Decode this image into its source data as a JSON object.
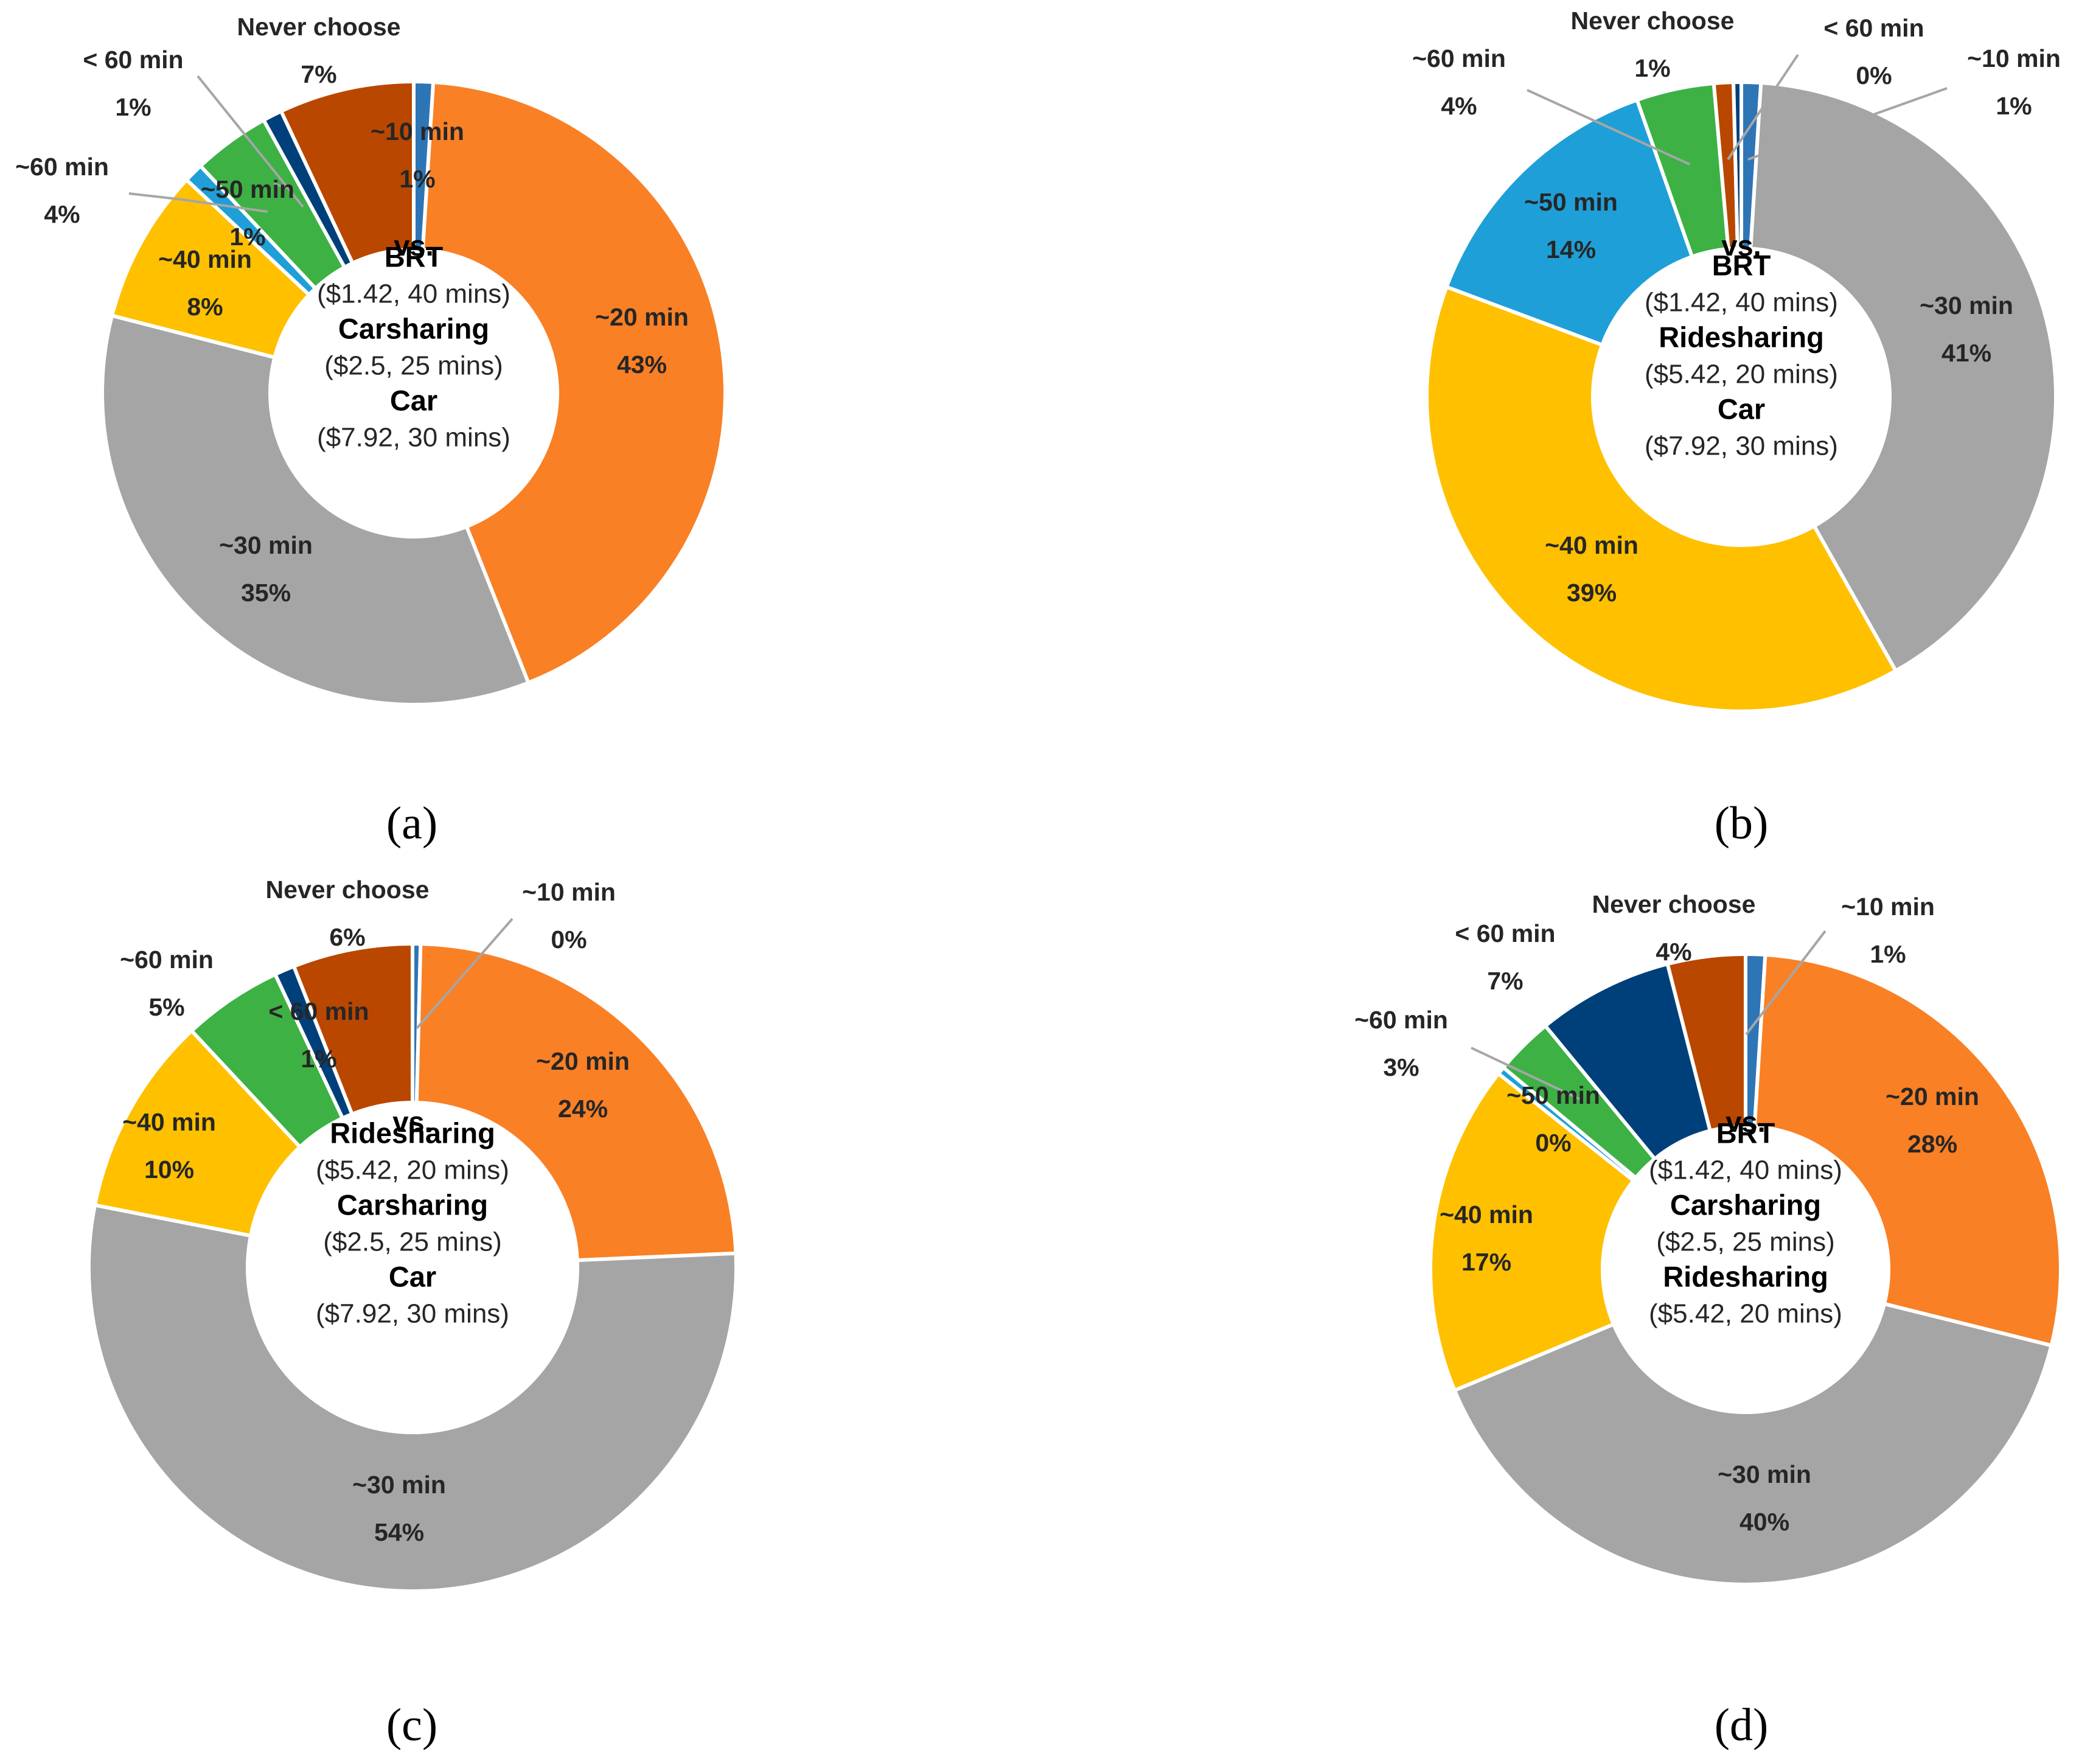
{
  "figure": {
    "categories": [
      "~10 min",
      "~20 min",
      "~30 min",
      "~40 min",
      "~50 min",
      "~60 min",
      "< 60 min",
      "Never choose"
    ],
    "colors": {
      "~10 min": "#2e75b6",
      "~20 min": "#f98025",
      "~30 min": "#a5a5a5",
      "~40 min": "#ffc000",
      "~50 min": "#1f9fd7",
      "~60 min": "#3db144",
      "< 60 min": "#00407a",
      "Never choose": "#b94700"
    },
    "center_lead": "vs."
  },
  "chart_data": [
    {
      "type": "pie",
      "panel": "(a)",
      "title": "",
      "hole": "donut",
      "center_lines": [
        {
          "text": "BRT",
          "style": "bold"
        },
        {
          "text": "($1.42, 40 mins)",
          "style": "normal"
        },
        {
          "text": "Carsharing",
          "style": "bold"
        },
        {
          "text": "($2.5, 25 mins)",
          "style": "normal"
        },
        {
          "text": "Car",
          "style": "bold"
        },
        {
          "text": "($7.92, 30 mins)",
          "style": "normal"
        }
      ],
      "slices": [
        {
          "label": "~10 min",
          "value": 1,
          "pct": "1%"
        },
        {
          "label": "~20 min",
          "value": 43,
          "pct": "43%"
        },
        {
          "label": "~30 min",
          "value": 35,
          "pct": "35%"
        },
        {
          "label": "~40 min",
          "value": 8,
          "pct": "8%"
        },
        {
          "label": "~50 min",
          "value": 1,
          "pct": "1%"
        },
        {
          "label": "~60 min",
          "value": 4,
          "pct": "4%"
        },
        {
          "label": "< 60 min",
          "value": 1,
          "pct": "1%"
        },
        {
          "label": "Never choose",
          "value": 7,
          "pct": "7%"
        }
      ]
    },
    {
      "type": "pie",
      "panel": "(b)",
      "title": "",
      "hole": "donut",
      "center_lines": [
        {
          "text": "BRT",
          "style": "bold"
        },
        {
          "text": "($1.42, 40 mins)",
          "style": "normal"
        },
        {
          "text": "Ridesharing",
          "style": "bold"
        },
        {
          "text": "($5.42, 20 mins)",
          "style": "normal"
        },
        {
          "text": "Car",
          "style": "bold"
        },
        {
          "text": "($7.92, 30 mins)",
          "style": "normal"
        }
      ],
      "slices": [
        {
          "label": "~10 min",
          "value": 1,
          "pct": "1%"
        },
        {
          "label": "~30 min",
          "value": 41,
          "pct": "41%"
        },
        {
          "label": "~40 min",
          "value": 39,
          "pct": "39%"
        },
        {
          "label": "~50 min",
          "value": 14,
          "pct": "14%"
        },
        {
          "label": "~60 min",
          "value": 4,
          "pct": "4%"
        },
        {
          "label": "Never choose",
          "value": 1,
          "pct": "1%"
        },
        {
          "label": "< 60 min",
          "value": 0.4,
          "pct": "0%"
        }
      ]
    },
    {
      "type": "pie",
      "panel": "(c)",
      "title": "",
      "hole": "donut",
      "center_lines": [
        {
          "text": "Ridesharing",
          "style": "bold"
        },
        {
          "text": "($5.42, 20 mins)",
          "style": "normal"
        },
        {
          "text": "Carsharing",
          "style": "bold"
        },
        {
          "text": "($2.5, 25 mins)",
          "style": "normal"
        },
        {
          "text": "Car",
          "style": "bold"
        },
        {
          "text": "($7.92, 30 mins)",
          "style": "normal"
        }
      ],
      "slices": [
        {
          "label": "~10 min",
          "value": 0.4,
          "pct": "0%"
        },
        {
          "label": "~20 min",
          "value": 24,
          "pct": "24%"
        },
        {
          "label": "~30 min",
          "value": 54,
          "pct": "54%"
        },
        {
          "label": "~40 min",
          "value": 10,
          "pct": "10%"
        },
        {
          "label": "~60 min",
          "value": 5,
          "pct": "5%"
        },
        {
          "label": "< 60 min",
          "value": 1,
          "pct": "1%"
        },
        {
          "label": "Never choose",
          "value": 6,
          "pct": "6%"
        }
      ]
    },
    {
      "type": "pie",
      "panel": "(d)",
      "title": "",
      "hole": "donut",
      "center_lines": [
        {
          "text": "BRT",
          "style": "bold"
        },
        {
          "text": "($1.42, 40 mins)",
          "style": "normal"
        },
        {
          "text": "Carsharing",
          "style": "bold"
        },
        {
          "text": "($2.5, 25 mins)",
          "style": "normal"
        },
        {
          "text": "Ridesharing",
          "style": "bold"
        },
        {
          "text": "($5.42, 20 mins)",
          "style": "normal"
        }
      ],
      "slices": [
        {
          "label": "~10 min",
          "value": 1,
          "pct": "1%"
        },
        {
          "label": "~20 min",
          "value": 28,
          "pct": "28%"
        },
        {
          "label": "~30 min",
          "value": 40,
          "pct": "40%"
        },
        {
          "label": "~40 min",
          "value": 17,
          "pct": "17%"
        },
        {
          "label": "~50 min",
          "value": 0.4,
          "pct": "0%"
        },
        {
          "label": "~60 min",
          "value": 3,
          "pct": "3%"
        },
        {
          "label": "< 60 min",
          "value": 7,
          "pct": "7%"
        },
        {
          "label": "Never choose",
          "value": 4,
          "pct": "4%"
        }
      ]
    }
  ]
}
